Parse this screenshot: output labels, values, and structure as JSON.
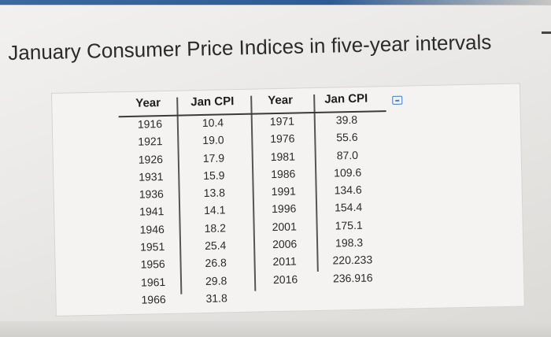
{
  "page": {
    "title": "January Consumer Price Indices in five-year intervals"
  },
  "colors": {
    "accent": "#2d5c94",
    "copy_icon": "#3f7ad8"
  },
  "table": {
    "headers": {
      "year_left": "Year",
      "cpi_left": "Jan CPI",
      "year_right": "Year",
      "cpi_right": "Jan CPI"
    },
    "left": {
      "years": [
        "1916",
        "1921",
        "1926",
        "1931",
        "1936",
        "1941",
        "1946",
        "1951",
        "1956",
        "1961",
        "1966"
      ],
      "cpi": [
        "10.4",
        "19.0",
        "17.9",
        "15.9",
        "13.8",
        "14.1",
        "18.2",
        "25.4",
        "26.8",
        "29.8",
        "31.8"
      ]
    },
    "right": {
      "years": [
        "1971",
        "1976",
        "1981",
        "1986",
        "1991",
        "1996",
        "2001",
        "2006",
        "2011",
        "2016"
      ],
      "cpi": [
        "39.8",
        "55.6",
        "87.0",
        "109.6",
        "134.6",
        "154.4",
        "175.1",
        "198.3",
        "220.233",
        "236.916"
      ]
    },
    "icons": {
      "copy": "copy-icon"
    }
  }
}
